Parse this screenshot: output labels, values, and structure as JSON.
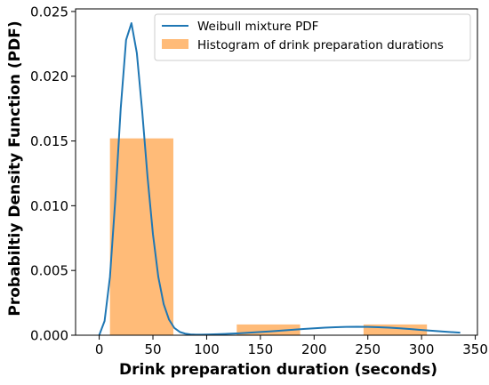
{
  "chart_data": {
    "type": "bar",
    "xlabel": "Drink preparation duration (seconds)",
    "ylabel": "Probabiltiy Density Function (PDF)",
    "xlim": [
      -22,
      352
    ],
    "ylim": [
      0,
      0.0252
    ],
    "x_ticks": [
      0,
      50,
      100,
      150,
      200,
      250,
      300,
      350
    ],
    "x_tick_labels": [
      "0",
      "50",
      "100",
      "150",
      "200",
      "250",
      "300",
      "350"
    ],
    "y_ticks": [
      0,
      0.005,
      0.01,
      0.015,
      0.02,
      0.025
    ],
    "y_tick_labels": [
      "0.000",
      "0.005",
      "0.010",
      "0.015",
      "0.020",
      "0.025"
    ],
    "grid": false,
    "legend_position": "top-right",
    "colors": {
      "line": "#1f77b4",
      "bars": "#ffbb78"
    },
    "series": [
      {
        "name": "Weibull mixture PDF",
        "kind": "line",
        "x": [
          0,
          5,
          10,
          15,
          20,
          25,
          30,
          35,
          40,
          45,
          50,
          55,
          60,
          65,
          70,
          75,
          80,
          85,
          90,
          95,
          100,
          110,
          120,
          130,
          140,
          150,
          160,
          170,
          180,
          190,
          200,
          210,
          220,
          230,
          240,
          250,
          260,
          270,
          280,
          290,
          300,
          310,
          320,
          336
        ],
        "y": [
          0.0,
          0.0011,
          0.0045,
          0.0105,
          0.0175,
          0.0228,
          0.0241,
          0.0218,
          0.0173,
          0.0122,
          0.0078,
          0.0045,
          0.0024,
          0.0012,
          0.00055,
          0.00025,
          0.00012,
          6e-05,
          4e-05,
          4e-05,
          5e-05,
          8e-05,
          0.00011,
          0.00015,
          0.0002,
          0.00025,
          0.0003,
          0.00036,
          0.00042,
          0.00048,
          0.00053,
          0.00058,
          0.00062,
          0.00064,
          0.00065,
          0.00064,
          0.00062,
          0.00058,
          0.00053,
          0.00047,
          0.0004,
          0.00034,
          0.00028,
          0.0002
        ]
      },
      {
        "name": "Histogram of drink preparation durations",
        "kind": "histogram",
        "bins": [
          {
            "start": 10,
            "end": 69,
            "value": 0.0152
          },
          {
            "start": 128,
            "end": 187,
            "value": 0.00083
          },
          {
            "start": 246,
            "end": 305,
            "value": 0.00083
          }
        ]
      }
    ]
  }
}
